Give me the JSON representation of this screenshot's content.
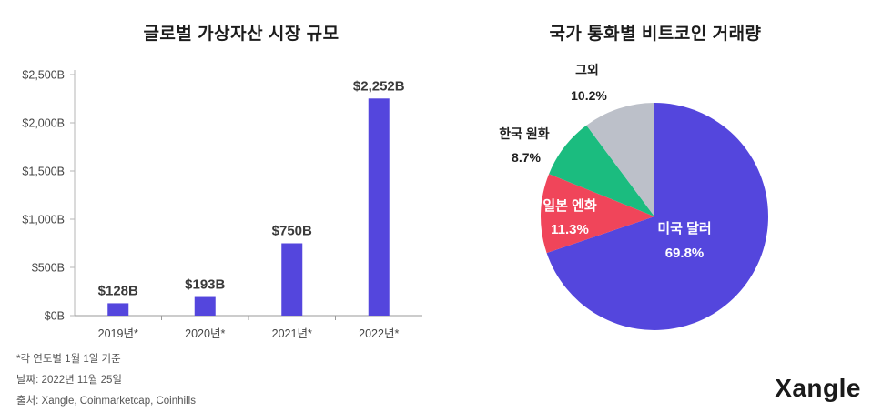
{
  "chart_data": [
    {
      "type": "bar",
      "title": "글로벌 가상자산 시장 규모",
      "categories": [
        "2019년*",
        "2020년*",
        "2021년*",
        "2022년*"
      ],
      "values": [
        128,
        193,
        750,
        2252
      ],
      "value_labels": [
        "$128B",
        "$193B",
        "$750B",
        "$2,252B"
      ],
      "ylim": [
        0,
        2500
      ],
      "yticks": [
        0,
        500,
        1000,
        1500,
        2000,
        2500
      ],
      "ytick_labels": [
        "$0B",
        "$500B",
        "$1,000B",
        "$1,500B",
        "$2,000B",
        "$2,500B"
      ],
      "xlabel": "",
      "ylabel": "",
      "grid": false,
      "bar_color": "#5446dd"
    },
    {
      "type": "pie",
      "title": "국가 통화별 비트코인 거래량",
      "slices": [
        {
          "label": "미국 달러",
          "value": 69.8,
          "value_label": "69.8%",
          "color": "#5446dd"
        },
        {
          "label": "일본 엔화",
          "value": 11.3,
          "value_label": "11.3%",
          "color": "#f0455a"
        },
        {
          "label": "한국 원화",
          "value": 8.7,
          "value_label": "8.7%",
          "color": "#1bbc7f"
        },
        {
          "label": "그외",
          "value": 10.2,
          "value_label": "10.2%",
          "color": "#bcc0c9"
        }
      ],
      "start": "top",
      "direction": "clockwise"
    }
  ],
  "footnotes": [
    "*각 연도별 1월 1일 기준",
    "날짜: 2022년 11월 25일",
    "출처: Xangle, Coinmarketcap, Coinhills"
  ],
  "brand": "Xangle"
}
